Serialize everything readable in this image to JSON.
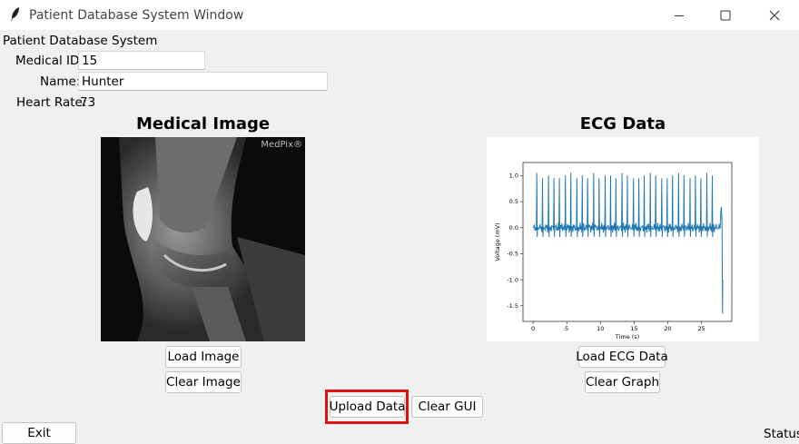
{
  "window": {
    "title": "Patient Database System Window"
  },
  "header": {
    "label": "Patient Database System"
  },
  "fields": {
    "medical_id": {
      "label": "Medical ID:",
      "value": "15"
    },
    "name": {
      "label": "Name:",
      "value": "Hunter"
    },
    "heart_rate": {
      "label": "Heart Rate:",
      "value": "73"
    }
  },
  "image_section": {
    "title": "Medical Image",
    "watermark": "MedPix®",
    "load_label": "Load Image",
    "clear_label": "Clear Image"
  },
  "ecg_section": {
    "title": "ECG Data",
    "load_label": "Load ECG Data",
    "clear_label": "Clear Graph"
  },
  "actions": {
    "upload_label": "Upload Data",
    "clear_gui_label": "Clear GUI",
    "exit_label": "Exit"
  },
  "status": {
    "text": "Status"
  },
  "colors": {
    "highlight": "#e01010",
    "ecg_line": "#1f77b4",
    "window_bg": "#f0f0f0"
  },
  "chart_data": {
    "type": "line",
    "xlabel": "Time (s)",
    "ylabel": "Voltage (mV)",
    "xticks": [
      0,
      5,
      10,
      15,
      20,
      25
    ],
    "yticks": [
      1.0,
      0.5,
      0.0,
      -0.5,
      -1.0,
      -1.5
    ],
    "xlim": [
      -1.5,
      29.5
    ],
    "ylim": [
      -1.8,
      1.25
    ],
    "grid": false,
    "series": [
      {
        "values_description": "",
        "beat_times": [
          0.55,
          1.4,
          2.3,
          3.1,
          3.9,
          4.8,
          5.6,
          6.5,
          7.3,
          8.1,
          9.0,
          9.8,
          10.7,
          11.5,
          12.3,
          13.2,
          14.0,
          14.9,
          15.7,
          16.5,
          17.4,
          18.2,
          19.1,
          19.9,
          20.7,
          21.6,
          22.4,
          23.3,
          24.1,
          24.9,
          25.8,
          26.6
        ],
        "peak_values": [
          1.05,
          0.95,
          1.0,
          0.95,
          0.95,
          1.0,
          1.05,
          0.95,
          1.0,
          0.95,
          1.05,
          0.95,
          1.0,
          1.0,
          0.95,
          1.05,
          1.0,
          0.95,
          0.95,
          1.0,
          1.05,
          1.0,
          0.95,
          0.95,
          1.0,
          1.05,
          1.0,
          0.95,
          1.0,
          0.95,
          1.05,
          1.0
        ],
        "end_artifact": {
          "t": 28.0,
          "min": -1.65,
          "max": 0.4
        }
      }
    ]
  }
}
